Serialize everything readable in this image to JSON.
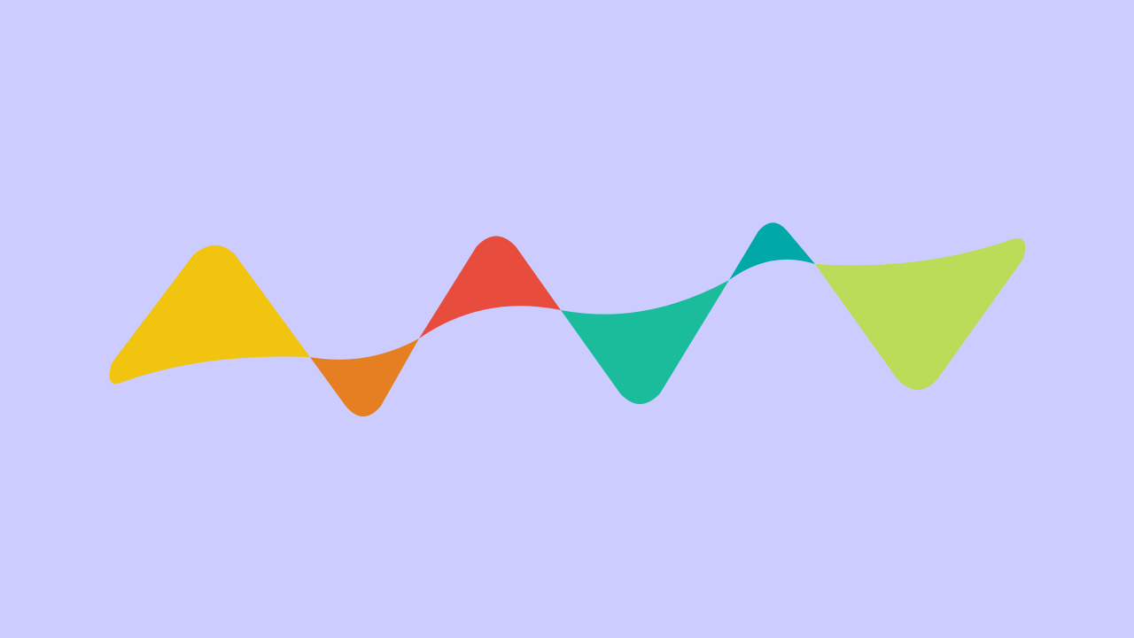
{
  "background_color": "#ccccfe",
  "colors": {
    "yellow": "#f1c40f",
    "orange": "#e67e22",
    "red": "#e74c3c",
    "green": "#1abc9c",
    "teal": "#00a8a8",
    "lime": "#badc58"
  }
}
